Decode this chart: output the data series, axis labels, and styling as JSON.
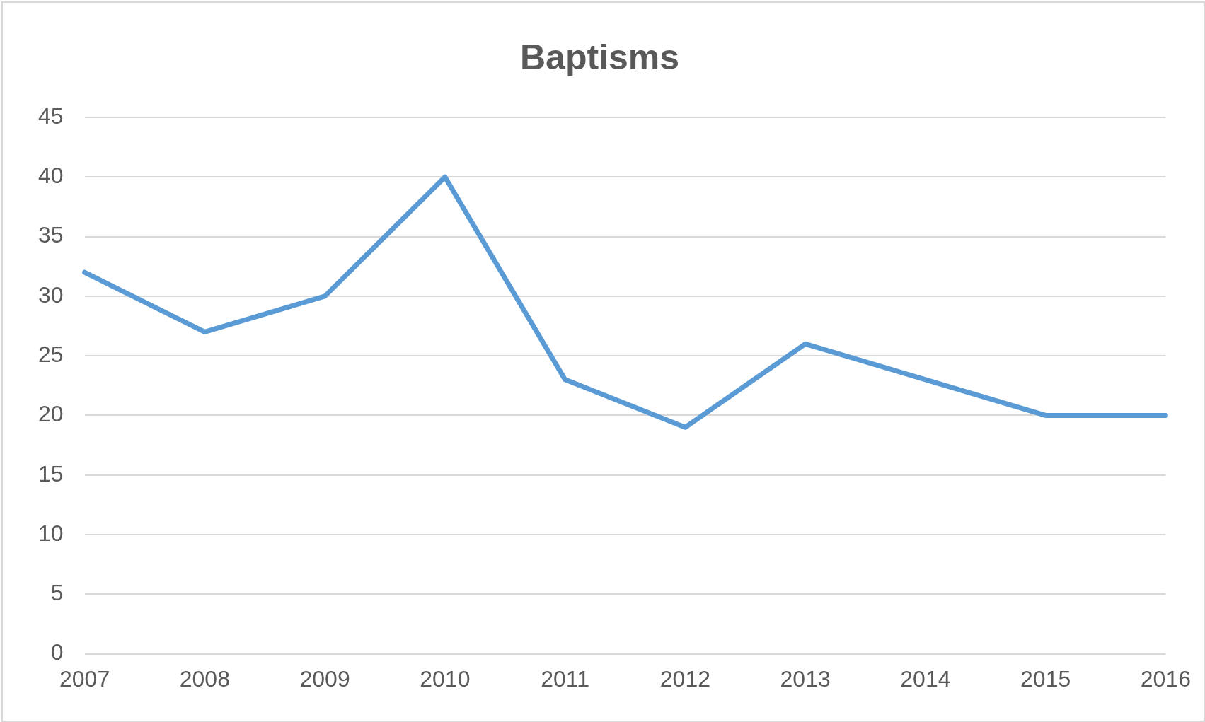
{
  "chart_data": {
    "type": "line",
    "title": "Baptisms",
    "categories": [
      "2007",
      "2008",
      "2009",
      "2010",
      "2011",
      "2012",
      "2013",
      "2014",
      "2015",
      "2016"
    ],
    "series": [
      {
        "color": "#5b9bd5",
        "values": [
          32,
          27,
          30,
          40,
          23,
          19,
          26,
          23,
          20,
          20
        ]
      }
    ],
    "ylim": [
      0,
      45
    ],
    "yticks": [
      0,
      5,
      10,
      15,
      20,
      25,
      30,
      35,
      40,
      45
    ],
    "grid": "y",
    "legend": false,
    "marker": "none",
    "line_style": "solid"
  }
}
